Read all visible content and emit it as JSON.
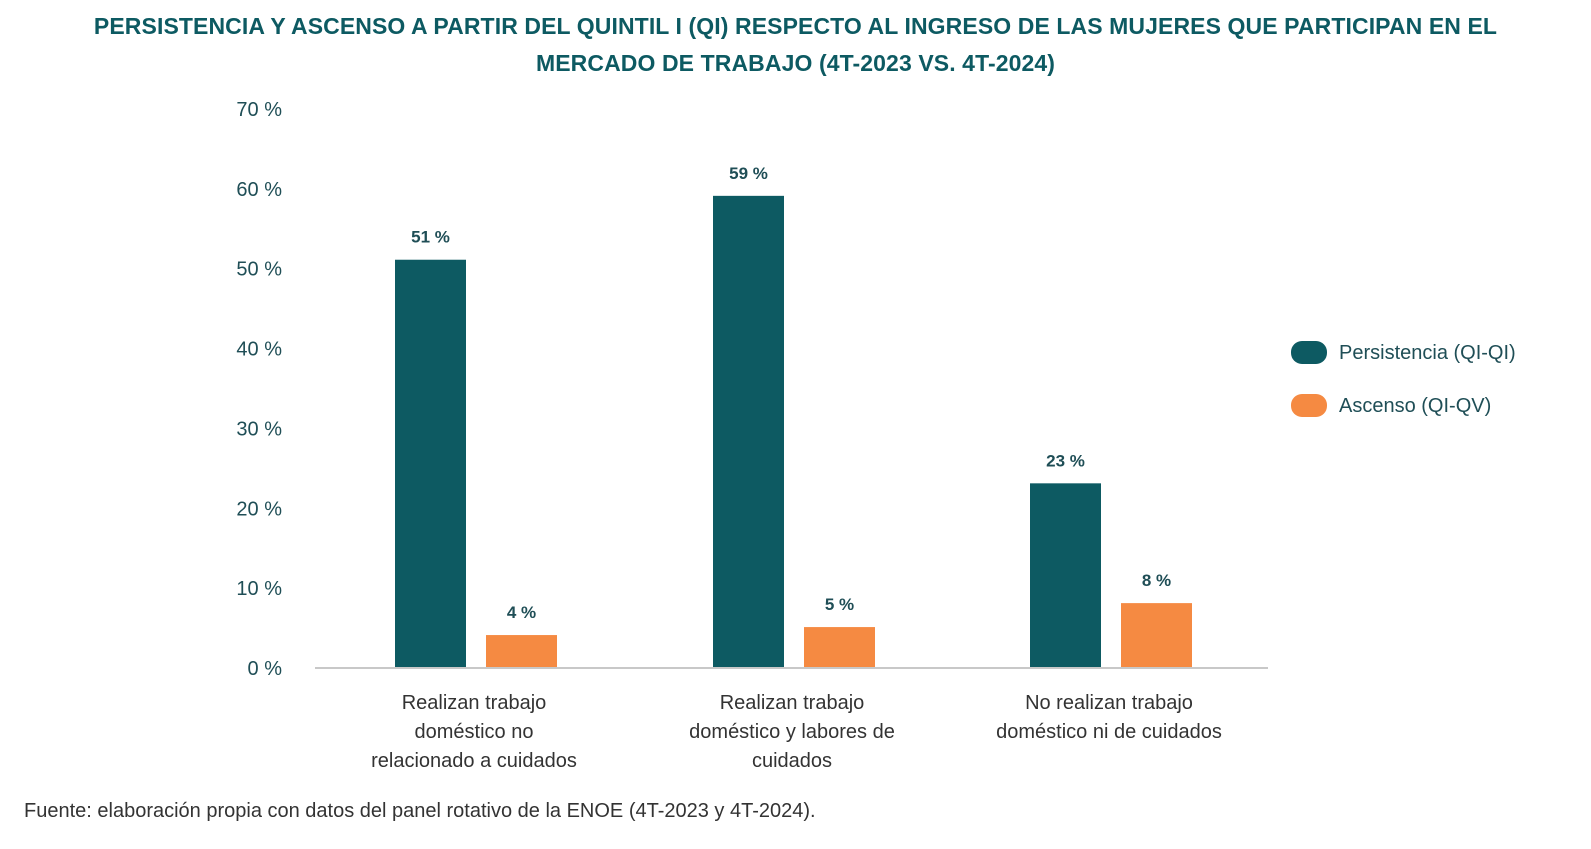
{
  "chart_data": {
    "type": "bar",
    "title": "PERSISTENCIA Y ASCENSO A PARTIR DEL QUINTIL I (QI) RESPECTO AL INGRESO DE LAS MUJERES QUE PARTICIPAN EN EL MERCADO DE TRABAJO (4T-2023 VS. 4T-2024)",
    "categories": [
      [
        "Realizan trabajo",
        "doméstico no",
        "relacionado a cuidados"
      ],
      [
        "Realizan trabajo",
        "doméstico y labores de",
        "cuidados"
      ],
      [
        "No realizan trabajo",
        "doméstico ni de cuidados"
      ]
    ],
    "series": [
      {
        "name": "Persistencia (QI-QI)",
        "color": "#0d5a62",
        "values": [
          51,
          59,
          23
        ],
        "labels": [
          "51 %",
          "59 %",
          "23 %"
        ]
      },
      {
        "name": "Ascenso (QI-QV)",
        "color": "#f58a42",
        "values": [
          4,
          5,
          8
        ],
        "labels": [
          "4 %",
          "5 %",
          "8 %"
        ]
      }
    ],
    "ylim": [
      0,
      70
    ],
    "yticks": [
      0,
      10,
      20,
      30,
      40,
      50,
      60,
      70
    ],
    "ytick_labels": [
      "0 %",
      "10 %",
      "20 %",
      "30 %",
      "40 %",
      "50 %",
      "60 %",
      "70 %"
    ],
    "xlabel": "",
    "ylabel": "",
    "grid": false,
    "legend": "right",
    "source": "Fuente: elaboración propia con datos del panel rotativo de la ENOE (4T-2023 y 4T-2024)."
  }
}
